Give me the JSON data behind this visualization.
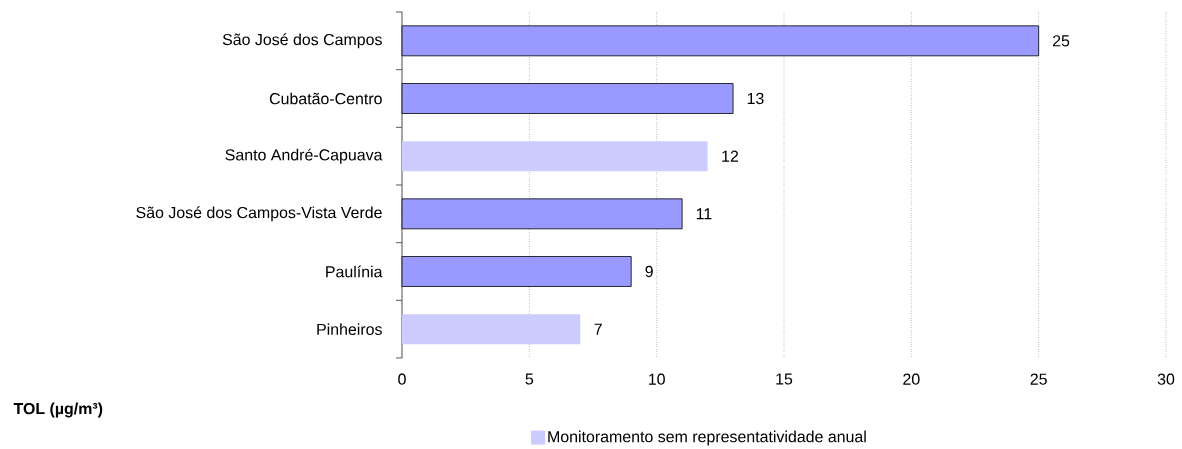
{
  "chart_data": {
    "type": "bar",
    "orientation": "horizontal",
    "xlabel": "TOL (µg/m³)",
    "categories": [
      "São José dos Campos",
      "Cubatão-Centro",
      "Santo André-Capuava",
      "São José dos Campos-Vista Verde",
      "Paulínia",
      "Pinheiros"
    ],
    "series": [
      {
        "color": "#9999ff",
        "values": [
          25,
          13,
          null,
          11,
          9,
          null
        ]
      },
      {
        "name": "Monitoramento sem representatividade anual",
        "color": "#ccccff",
        "values": [
          null,
          null,
          12,
          null,
          null,
          7
        ]
      }
    ],
    "xlim": [
      0,
      30
    ],
    "xticks": [
      0,
      5,
      10,
      15,
      20,
      25,
      30
    ],
    "grid": "x",
    "legend": "bottom",
    "data_labels": true
  }
}
